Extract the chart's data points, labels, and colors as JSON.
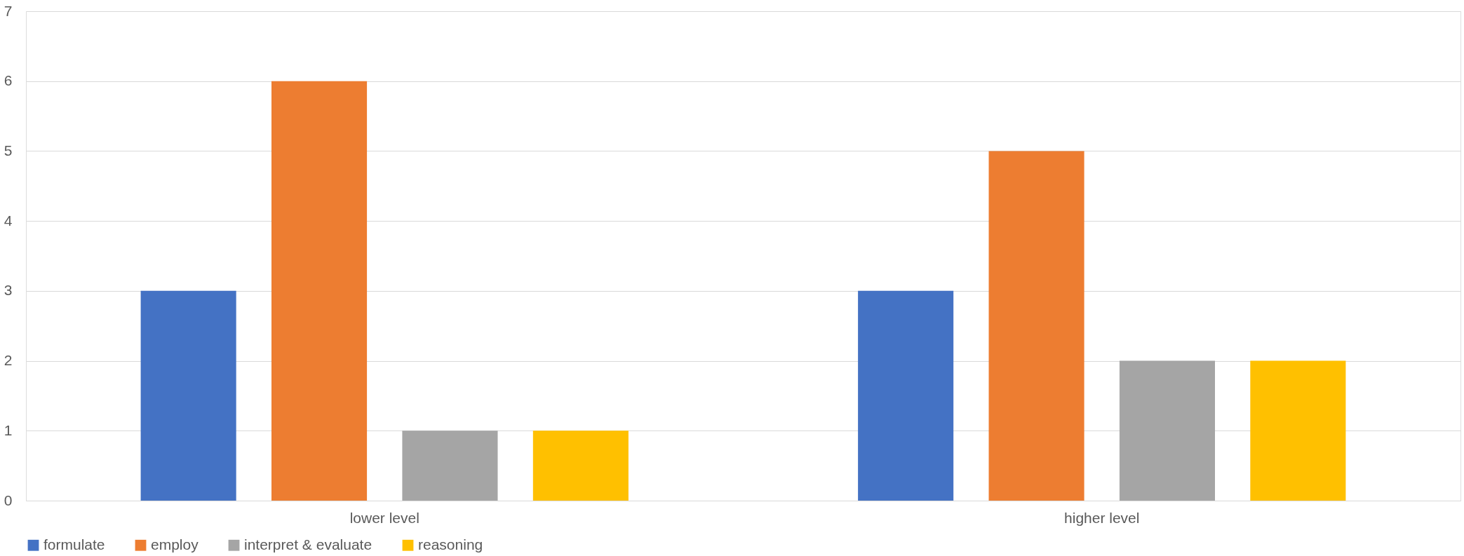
{
  "chart_data": {
    "type": "bar",
    "categories": [
      "lower level",
      "higher level"
    ],
    "series": [
      {
        "name": "formulate",
        "color": "#4472c4",
        "values": [
          3,
          3
        ]
      },
      {
        "name": "employ",
        "color": "#ed7d31",
        "values": [
          6,
          5
        ]
      },
      {
        "name": "interpret & evaluate",
        "color": "#a5a5a5",
        "values": [
          1,
          2
        ]
      },
      {
        "name": "reasoning",
        "color": "#ffc000",
        "values": [
          1,
          2
        ]
      }
    ],
    "ylim": [
      0,
      7
    ],
    "yticks": [
      0,
      1,
      2,
      3,
      4,
      5,
      6,
      7
    ],
    "grid": "y",
    "legend": "bottom"
  }
}
